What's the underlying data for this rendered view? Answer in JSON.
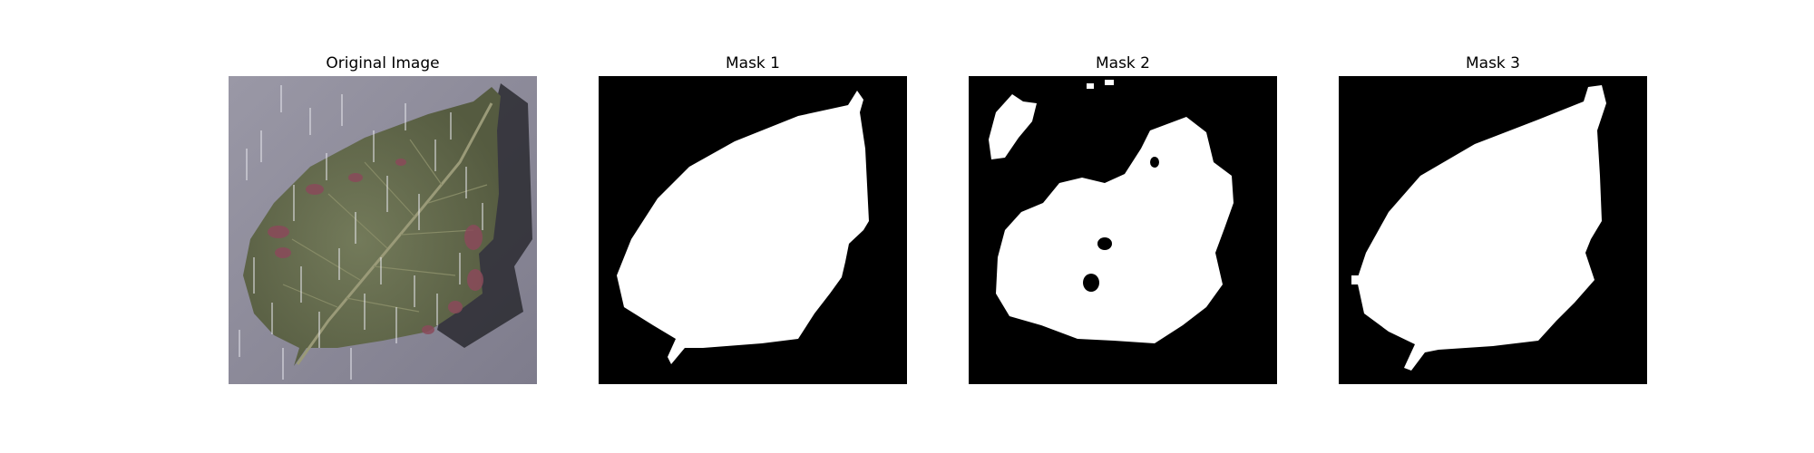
{
  "figure": {
    "panels": [
      {
        "title": "Original Image"
      },
      {
        "title": "Mask 1"
      },
      {
        "title": "Mask 2"
      },
      {
        "title": "Mask 3"
      }
    ],
    "colors": {
      "mask_background": "#000000",
      "mask_foreground": "#ffffff",
      "leaf": "#6a6f52",
      "photo_background": "#8a8898",
      "leaf_spots": "#8a4a5a"
    }
  }
}
